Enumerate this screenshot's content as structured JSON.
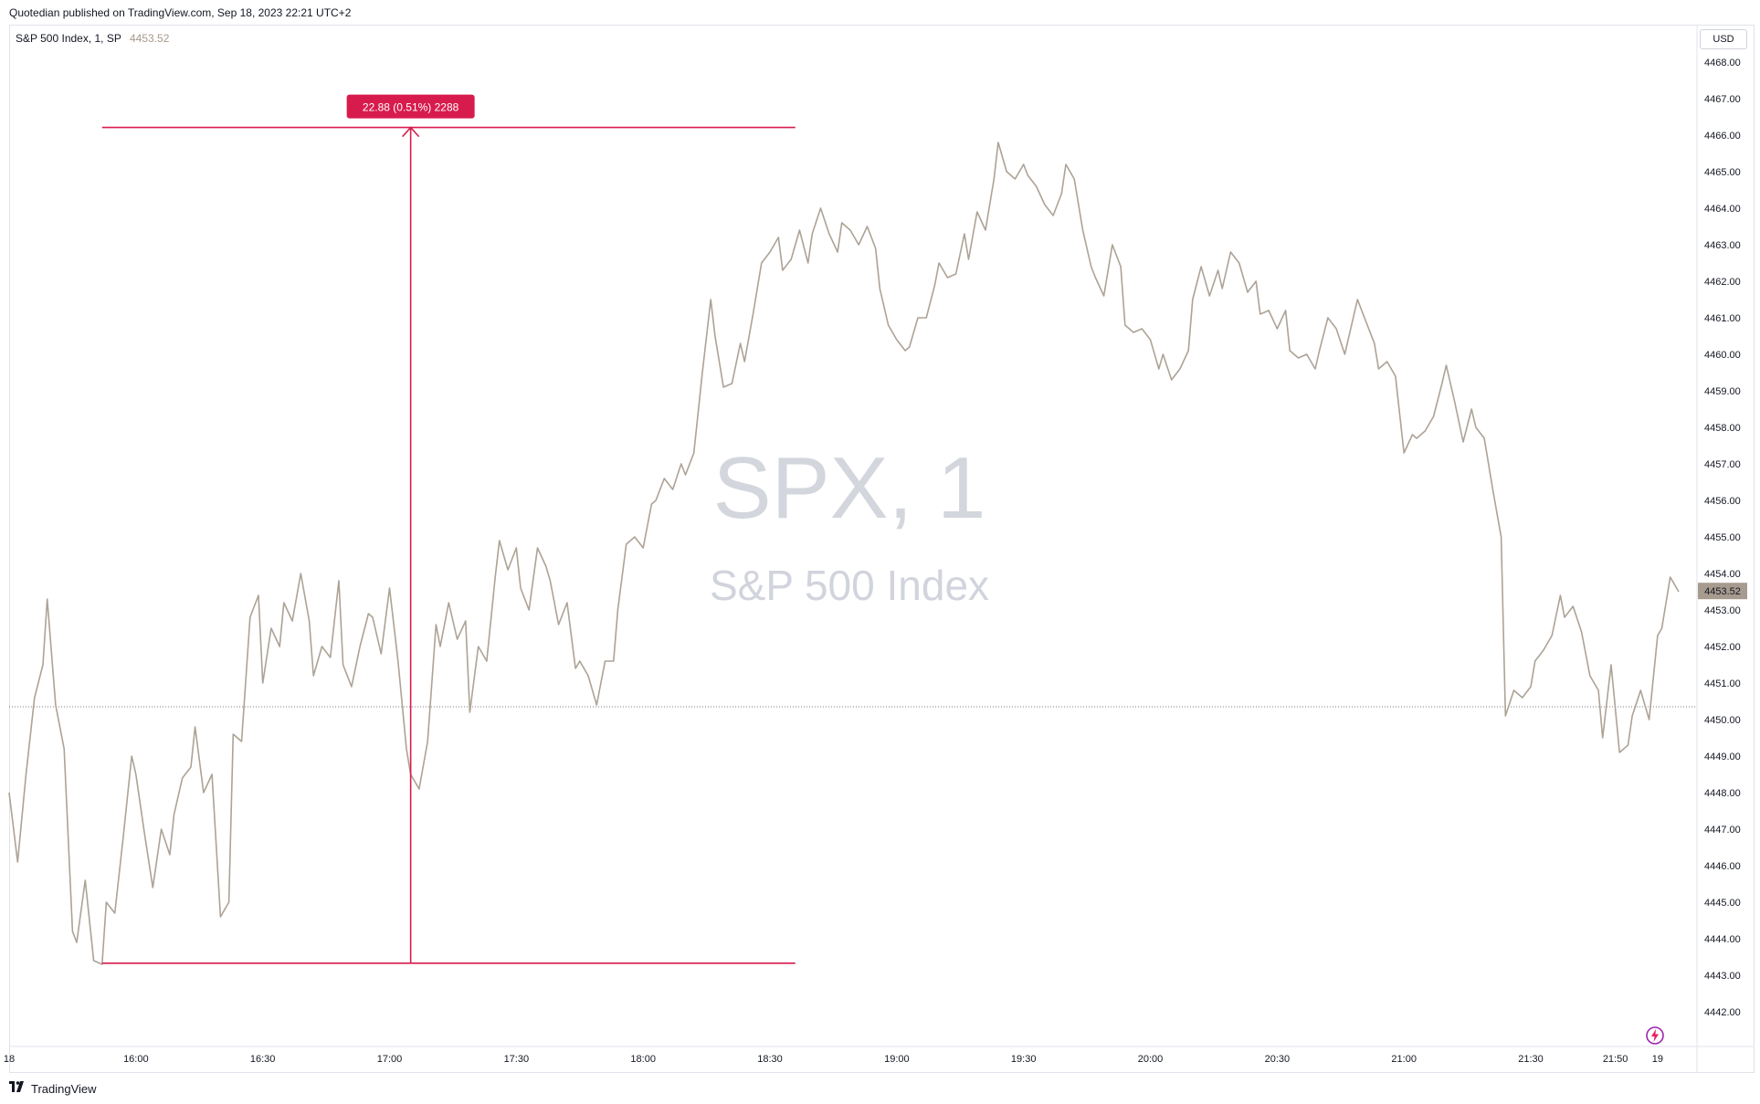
{
  "header": {
    "published_text": "Quotedian published on TradingView.com, Sep 18, 2023 22:21 UTC+2"
  },
  "legend": {
    "title": "S&P 500 Index, 1, SP",
    "value": "4453.52"
  },
  "currency": "USD",
  "watermark": {
    "symbol": "SPX, 1",
    "name": "S&P 500 Index"
  },
  "footer": {
    "brand": "TradingView"
  },
  "colors": {
    "line": "#ada296",
    "measure": "#d81b4d",
    "axis_text": "#131722",
    "last_price_bg": "#a79b8f"
  },
  "chart_data": {
    "type": "line",
    "title": "S&P 500 Index, 1, SP",
    "xlabel": "",
    "ylabel": "",
    "grid": false,
    "ylim": [
      4441.5,
      4468.6
    ],
    "y_ticks": [
      "4468.00",
      "4467.00",
      "4466.00",
      "4465.00",
      "4464.00",
      "4463.00",
      "4462.00",
      "4461.00",
      "4460.00",
      "4459.00",
      "4458.00",
      "4457.00",
      "4456.00",
      "4455.00",
      "4454.00",
      "4453.00",
      "4452.00",
      "4451.00",
      "4450.00",
      "4449.00",
      "4448.00",
      "4447.00",
      "4446.00",
      "4445.00",
      "4444.00",
      "4443.00",
      "4442.00"
    ],
    "x_ticks": [
      {
        "label": "18",
        "t": "15:30"
      },
      {
        "label": "16:00",
        "t": "16:00"
      },
      {
        "label": "16:30",
        "t": "16:30"
      },
      {
        "label": "17:00",
        "t": "17:00"
      },
      {
        "label": "17:30",
        "t": "17:30"
      },
      {
        "label": "18:00",
        "t": "18:00"
      },
      {
        "label": "18:30",
        "t": "18:30"
      },
      {
        "label": "19:00",
        "t": "19:00"
      },
      {
        "label": "19:30",
        "t": "19:30"
      },
      {
        "label": "20:00",
        "t": "20:00"
      },
      {
        "label": "20:30",
        "t": "20:30"
      },
      {
        "label": "21:00",
        "t": "21:00"
      },
      {
        "label": "21:30",
        "t": "21:30"
      },
      {
        "label": "21:50",
        "t": "21:50"
      },
      {
        "label": "19",
        "t": "22:00"
      }
    ],
    "x_range": [
      "15:30",
      "22:05"
    ],
    "series": [
      {
        "values": [
          [
            "15:30",
            4448.0
          ],
          [
            "15:32",
            4446.1
          ],
          [
            "15:34",
            4448.5
          ],
          [
            "15:36",
            4450.6
          ],
          [
            "15:38",
            4451.5
          ],
          [
            "15:39",
            4453.3
          ],
          [
            "15:41",
            4450.4
          ],
          [
            "15:43",
            4449.2
          ],
          [
            "15:45",
            4444.2
          ],
          [
            "15:46",
            4443.9
          ],
          [
            "15:48",
            4445.6
          ],
          [
            "15:50",
            4443.4
          ],
          [
            "15:52",
            4443.3
          ],
          [
            "15:53",
            4445.0
          ],
          [
            "15:55",
            4444.7
          ],
          [
            "15:57",
            4446.8
          ],
          [
            "15:59",
            4449.0
          ],
          [
            "16:00",
            4448.5
          ],
          [
            "16:02",
            4446.9
          ],
          [
            "16:04",
            4445.4
          ],
          [
            "16:06",
            4447.0
          ],
          [
            "16:08",
            4446.3
          ],
          [
            "16:09",
            4447.4
          ],
          [
            "16:11",
            4448.4
          ],
          [
            "16:13",
            4448.7
          ],
          [
            "16:14",
            4449.8
          ],
          [
            "16:16",
            4448.0
          ],
          [
            "16:18",
            4448.5
          ],
          [
            "16:20",
            4444.6
          ],
          [
            "16:22",
            4445.0
          ],
          [
            "16:23",
            4449.6
          ],
          [
            "16:25",
            4449.4
          ],
          [
            "16:27",
            4452.8
          ],
          [
            "16:29",
            4453.4
          ],
          [
            "16:30",
            4451.0
          ],
          [
            "16:32",
            4452.5
          ],
          [
            "16:34",
            4452.0
          ],
          [
            "16:35",
            4453.2
          ],
          [
            "16:37",
            4452.7
          ],
          [
            "16:39",
            4454.0
          ],
          [
            "16:41",
            4452.7
          ],
          [
            "16:42",
            4451.2
          ],
          [
            "16:44",
            4452.0
          ],
          [
            "16:46",
            4451.7
          ],
          [
            "16:48",
            4453.8
          ],
          [
            "16:49",
            4451.5
          ],
          [
            "16:51",
            4450.9
          ],
          [
            "16:53",
            4452.0
          ],
          [
            "16:55",
            4452.9
          ],
          [
            "16:56",
            4452.8
          ],
          [
            "16:58",
            4451.8
          ],
          [
            "17:00",
            4453.6
          ],
          [
            "17:02",
            4451.6
          ],
          [
            "17:04",
            4449.2
          ],
          [
            "17:05",
            4448.5
          ],
          [
            "17:07",
            4448.1
          ],
          [
            "17:09",
            4449.4
          ],
          [
            "17:11",
            4452.6
          ],
          [
            "17:12",
            4452.0
          ],
          [
            "17:14",
            4453.2
          ],
          [
            "17:16",
            4452.2
          ],
          [
            "17:18",
            4452.7
          ],
          [
            "17:19",
            4450.2
          ],
          [
            "17:21",
            4452.0
          ],
          [
            "17:23",
            4451.6
          ],
          [
            "17:25",
            4453.9
          ],
          [
            "17:26",
            4454.9
          ],
          [
            "17:28",
            4454.1
          ],
          [
            "17:30",
            4454.7
          ],
          [
            "17:31",
            4453.6
          ],
          [
            "17:33",
            4453.0
          ],
          [
            "17:35",
            4454.7
          ],
          [
            "17:37",
            4454.2
          ],
          [
            "17:38",
            4453.8
          ],
          [
            "17:40",
            4452.6
          ],
          [
            "17:42",
            4453.2
          ],
          [
            "17:44",
            4451.4
          ],
          [
            "17:45",
            4451.6
          ],
          [
            "17:47",
            4451.2
          ],
          [
            "17:49",
            4450.4
          ],
          [
            "17:51",
            4451.6
          ],
          [
            "17:53",
            4451.6
          ],
          [
            "17:54",
            4453.0
          ],
          [
            "17:56",
            4454.8
          ],
          [
            "17:58",
            4455.0
          ],
          [
            "18:00",
            4454.7
          ],
          [
            "18:02",
            4455.9
          ],
          [
            "18:03",
            4456.0
          ],
          [
            "18:05",
            4456.6
          ],
          [
            "18:07",
            4456.3
          ],
          [
            "18:09",
            4457.0
          ],
          [
            "18:10",
            4456.7
          ],
          [
            "18:12",
            4457.3
          ],
          [
            "18:14",
            4459.5
          ],
          [
            "18:16",
            4461.5
          ],
          [
            "18:17",
            4460.5
          ],
          [
            "18:19",
            4459.1
          ],
          [
            "18:21",
            4459.2
          ],
          [
            "18:23",
            4460.3
          ],
          [
            "18:24",
            4459.8
          ],
          [
            "18:26",
            4461.1
          ],
          [
            "18:28",
            4462.5
          ],
          [
            "18:30",
            4462.8
          ],
          [
            "18:32",
            4463.2
          ],
          [
            "18:33",
            4462.3
          ],
          [
            "18:35",
            4462.6
          ],
          [
            "18:37",
            4463.4
          ],
          [
            "18:39",
            4462.5
          ],
          [
            "18:40",
            4463.3
          ],
          [
            "18:42",
            4464.0
          ],
          [
            "18:44",
            4463.3
          ],
          [
            "18:46",
            4462.8
          ],
          [
            "18:47",
            4463.6
          ],
          [
            "18:49",
            4463.4
          ],
          [
            "18:51",
            4463.0
          ],
          [
            "18:53",
            4463.5
          ],
          [
            "18:55",
            4462.9
          ],
          [
            "18:56",
            4461.8
          ],
          [
            "18:58",
            4460.8
          ],
          [
            "19:00",
            4460.4
          ],
          [
            "19:02",
            4460.1
          ],
          [
            "19:03",
            4460.2
          ],
          [
            "19:05",
            4461.0
          ],
          [
            "19:07",
            4461.0
          ],
          [
            "19:09",
            4461.9
          ],
          [
            "19:10",
            4462.5
          ],
          [
            "19:12",
            4462.1
          ],
          [
            "19:14",
            4462.2
          ],
          [
            "19:16",
            4463.3
          ],
          [
            "19:17",
            4462.6
          ],
          [
            "19:19",
            4463.9
          ],
          [
            "19:21",
            4463.4
          ],
          [
            "19:23",
            4464.8
          ],
          [
            "19:24",
            4465.8
          ],
          [
            "19:26",
            4465.0
          ],
          [
            "19:28",
            4464.8
          ],
          [
            "19:30",
            4465.2
          ],
          [
            "19:31",
            4464.9
          ],
          [
            "19:33",
            4464.6
          ],
          [
            "19:35",
            4464.1
          ],
          [
            "19:37",
            4463.8
          ],
          [
            "19:39",
            4464.4
          ],
          [
            "19:40",
            4465.2
          ],
          [
            "19:42",
            4464.8
          ],
          [
            "19:44",
            4463.4
          ],
          [
            "19:46",
            4462.4
          ],
          [
            "19:47",
            4462.1
          ],
          [
            "19:49",
            4461.6
          ],
          [
            "19:51",
            4463.0
          ],
          [
            "19:53",
            4462.4
          ],
          [
            "19:54",
            4460.8
          ],
          [
            "19:56",
            4460.6
          ],
          [
            "19:58",
            4460.7
          ],
          [
            "20:00",
            4460.4
          ],
          [
            "20:02",
            4459.6
          ],
          [
            "20:03",
            4460.0
          ],
          [
            "20:05",
            4459.3
          ],
          [
            "20:07",
            4459.6
          ],
          [
            "20:09",
            4460.1
          ],
          [
            "20:10",
            4461.5
          ],
          [
            "20:12",
            4462.4
          ],
          [
            "20:14",
            4461.6
          ],
          [
            "20:16",
            4462.3
          ],
          [
            "20:17",
            4461.8
          ],
          [
            "20:19",
            4462.8
          ],
          [
            "20:21",
            4462.5
          ],
          [
            "20:23",
            4461.7
          ],
          [
            "20:25",
            4462.0
          ],
          [
            "20:26",
            4461.1
          ],
          [
            "20:28",
            4461.2
          ],
          [
            "20:30",
            4460.7
          ],
          [
            "20:32",
            4461.2
          ],
          [
            "20:33",
            4460.1
          ],
          [
            "20:35",
            4459.9
          ],
          [
            "20:37",
            4460.0
          ],
          [
            "20:39",
            4459.6
          ],
          [
            "20:40",
            4460.1
          ],
          [
            "20:42",
            4461.0
          ],
          [
            "20:44",
            4460.7
          ],
          [
            "20:46",
            4460.0
          ],
          [
            "20:47",
            4460.5
          ],
          [
            "20:49",
            4461.5
          ],
          [
            "20:51",
            4460.9
          ],
          [
            "20:53",
            4460.3
          ],
          [
            "20:54",
            4459.6
          ],
          [
            "20:56",
            4459.8
          ],
          [
            "20:58",
            4459.4
          ],
          [
            "21:00",
            4457.3
          ],
          [
            "21:02",
            4457.8
          ],
          [
            "21:03",
            4457.7
          ],
          [
            "21:05",
            4457.9
          ],
          [
            "21:07",
            4458.3
          ],
          [
            "21:09",
            4459.2
          ],
          [
            "21:10",
            4459.7
          ],
          [
            "21:12",
            4458.7
          ],
          [
            "21:14",
            4457.6
          ],
          [
            "21:16",
            4458.5
          ],
          [
            "21:17",
            4458.0
          ],
          [
            "21:19",
            4457.7
          ],
          [
            "21:21",
            4456.3
          ],
          [
            "21:23",
            4455.0
          ],
          [
            "21:24",
            4450.1
          ],
          [
            "21:26",
            4450.8
          ],
          [
            "21:28",
            4450.6
          ],
          [
            "21:30",
            4450.9
          ],
          [
            "21:31",
            4451.6
          ],
          [
            "21:33",
            4451.9
          ],
          [
            "21:35",
            4452.3
          ],
          [
            "21:37",
            4453.4
          ],
          [
            "21:38",
            4452.8
          ],
          [
            "21:40",
            4453.1
          ],
          [
            "21:42",
            4452.4
          ],
          [
            "21:44",
            4451.2
          ],
          [
            "21:46",
            4450.8
          ],
          [
            "21:47",
            4449.5
          ],
          [
            "21:49",
            4451.5
          ],
          [
            "21:51",
            4449.1
          ],
          [
            "21:53",
            4449.3
          ],
          [
            "21:54",
            4450.1
          ],
          [
            "21:56",
            4450.8
          ],
          [
            "21:58",
            4450.0
          ],
          [
            "22:00",
            4452.3
          ],
          [
            "22:01",
            4452.5
          ],
          [
            "22:03",
            4453.9
          ],
          [
            "22:05",
            4453.5
          ]
        ]
      }
    ],
    "last_price": 4453.52,
    "reference_price": 4450.35,
    "annotations": [
      {
        "type": "price_range",
        "label": "22.88 (0.51%) 2288",
        "from_price": 4443.33,
        "to_price": 4466.21,
        "x_start": "15:52",
        "x_end": "18:36",
        "x_arrow": "17:05"
      }
    ]
  }
}
